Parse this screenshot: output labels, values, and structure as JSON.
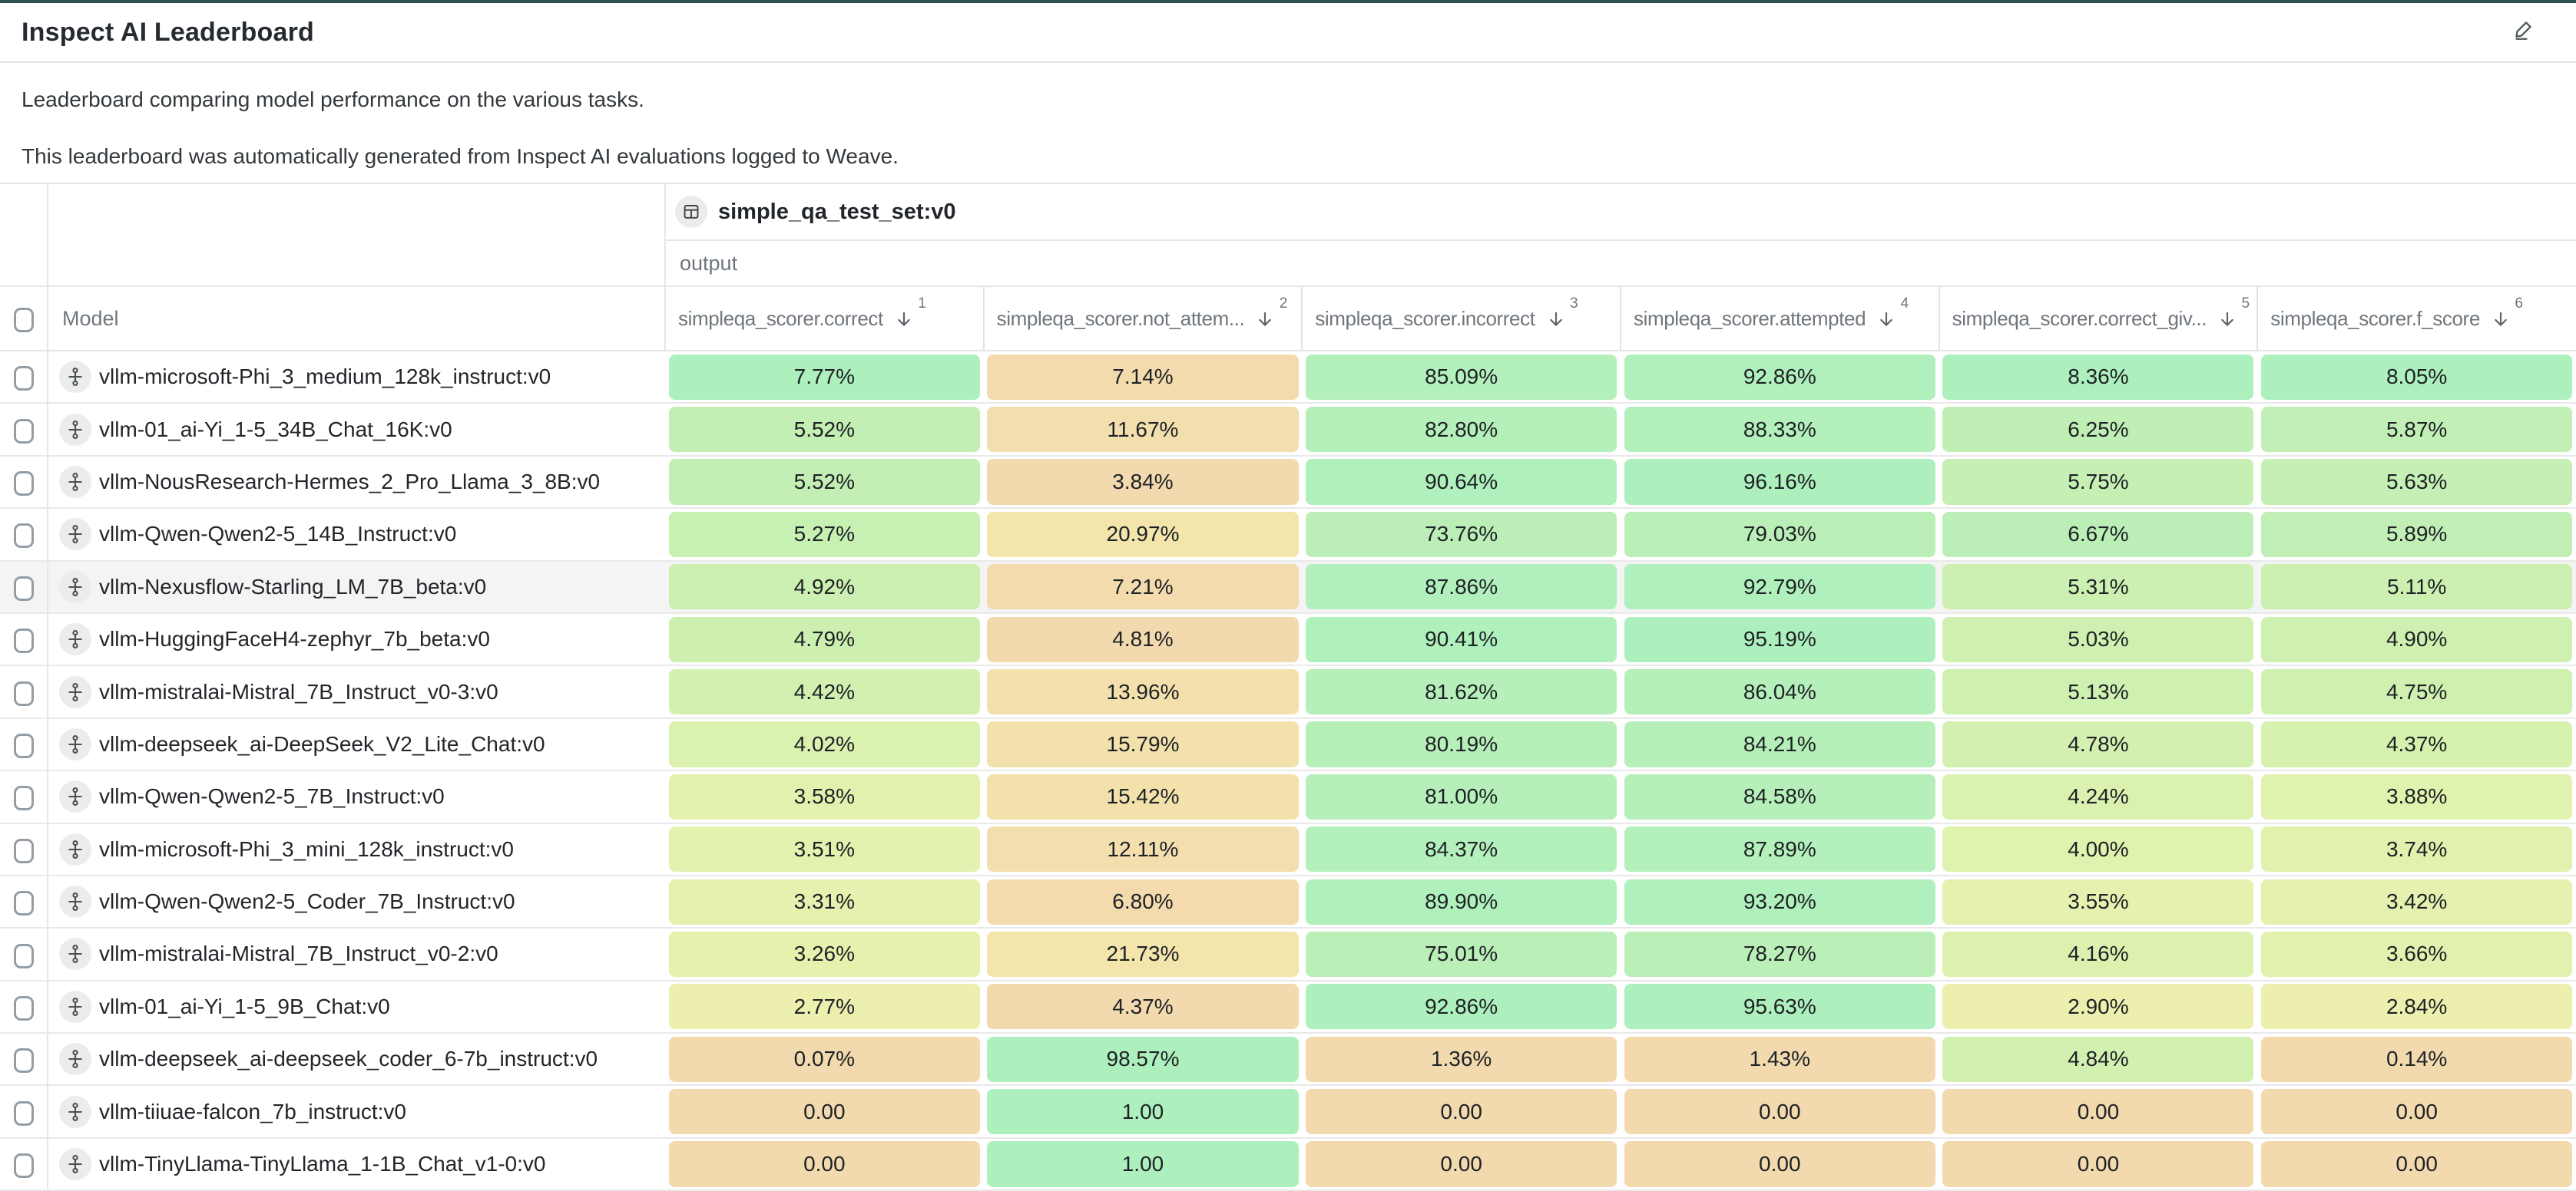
{
  "page": {
    "title": "Inspect AI Leaderboard",
    "description_line1": "Leaderboard comparing model performance on the various tasks.",
    "description_line2": "This leaderboard was automatically generated from Inspect AI evaluations logged to Weave."
  },
  "table": {
    "dataset_group": {
      "icon": "table-icon",
      "label": "simple_qa_test_set:v0"
    },
    "subgroup_label": "output",
    "model_column_header": "Model",
    "columns": [
      {
        "label": "simpleqa_scorer.correct",
        "sort_arrow": "down",
        "sort_order": "1"
      },
      {
        "label": "simpleqa_scorer.not_attem...",
        "sort_arrow": "down",
        "sort_order": "2"
      },
      {
        "label": "simpleqa_scorer.incorrect",
        "sort_arrow": "down",
        "sort_order": "3"
      },
      {
        "label": "simpleqa_scorer.attempted",
        "sort_arrow": "down",
        "sort_order": "4"
      },
      {
        "label": "simpleqa_scorer.correct_giv...",
        "sort_arrow": "down",
        "sort_order": "5"
      },
      {
        "label": "simpleqa_scorer.f_score",
        "sort_arrow": "down",
        "sort_order": "6"
      }
    ],
    "rows": [
      {
        "model": "vllm-microsoft-Phi_3_medium_128k_instruct:v0",
        "highlighted": false,
        "values": [
          "7.77%",
          "7.14%",
          "85.09%",
          "92.86%",
          "8.36%",
          "8.05%"
        ]
      },
      {
        "model": "vllm-01_ai-Yi_1-5_34B_Chat_16K:v0",
        "highlighted": false,
        "values": [
          "5.52%",
          "11.67%",
          "82.80%",
          "88.33%",
          "6.25%",
          "5.87%"
        ]
      },
      {
        "model": "vllm-NousResearch-Hermes_2_Pro_Llama_3_8B:v0",
        "highlighted": false,
        "values": [
          "5.52%",
          "3.84%",
          "90.64%",
          "96.16%",
          "5.75%",
          "5.63%"
        ]
      },
      {
        "model": "vllm-Qwen-Qwen2-5_14B_Instruct:v0",
        "highlighted": false,
        "values": [
          "5.27%",
          "20.97%",
          "73.76%",
          "79.03%",
          "6.67%",
          "5.89%"
        ]
      },
      {
        "model": "vllm-Nexusflow-Starling_LM_7B_beta:v0",
        "highlighted": true,
        "values": [
          "4.92%",
          "7.21%",
          "87.86%",
          "92.79%",
          "5.31%",
          "5.11%"
        ]
      },
      {
        "model": "vllm-HuggingFaceH4-zephyr_7b_beta:v0",
        "highlighted": false,
        "values": [
          "4.79%",
          "4.81%",
          "90.41%",
          "95.19%",
          "5.03%",
          "4.90%"
        ]
      },
      {
        "model": "vllm-mistralai-Mistral_7B_Instruct_v0-3:v0",
        "highlighted": false,
        "values": [
          "4.42%",
          "13.96%",
          "81.62%",
          "86.04%",
          "5.13%",
          "4.75%"
        ]
      },
      {
        "model": "vllm-deepseek_ai-DeepSeek_V2_Lite_Chat:v0",
        "highlighted": false,
        "values": [
          "4.02%",
          "15.79%",
          "80.19%",
          "84.21%",
          "4.78%",
          "4.37%"
        ]
      },
      {
        "model": "vllm-Qwen-Qwen2-5_7B_Instruct:v0",
        "highlighted": false,
        "values": [
          "3.58%",
          "15.42%",
          "81.00%",
          "84.58%",
          "4.24%",
          "3.88%"
        ]
      },
      {
        "model": "vllm-microsoft-Phi_3_mini_128k_instruct:v0",
        "highlighted": false,
        "values": [
          "3.51%",
          "12.11%",
          "84.37%",
          "87.89%",
          "4.00%",
          "3.74%"
        ]
      },
      {
        "model": "vllm-Qwen-Qwen2-5_Coder_7B_Instruct:v0",
        "highlighted": false,
        "values": [
          "3.31%",
          "6.80%",
          "89.90%",
          "93.20%",
          "3.55%",
          "3.42%"
        ]
      },
      {
        "model": "vllm-mistralai-Mistral_7B_Instruct_v0-2:v0",
        "highlighted": false,
        "values": [
          "3.26%",
          "21.73%",
          "75.01%",
          "78.27%",
          "4.16%",
          "3.66%"
        ]
      },
      {
        "model": "vllm-01_ai-Yi_1-5_9B_Chat:v0",
        "highlighted": false,
        "values": [
          "2.77%",
          "4.37%",
          "92.86%",
          "95.63%",
          "2.90%",
          "2.84%"
        ]
      },
      {
        "model": "vllm-deepseek_ai-deepseek_coder_6-7b_instruct:v0",
        "highlighted": false,
        "values": [
          "0.07%",
          "98.57%",
          "1.36%",
          "1.43%",
          "4.84%",
          "0.14%"
        ]
      },
      {
        "model": "vllm-tiiuae-falcon_7b_instruct:v0",
        "highlighted": false,
        "values": [
          "0.00",
          "1.00",
          "0.00",
          "0.00",
          "0.00",
          "0.00"
        ]
      },
      {
        "model": "vllm-TinyLlama-TinyLlama_1-1B_Chat_v1-0:v0",
        "highlighted": false,
        "values": [
          "0.00",
          "1.00",
          "0.00",
          "0.00",
          "0.00",
          "0.00"
        ]
      }
    ]
  },
  "colors": {
    "top_strip": "#2e5151",
    "divider": "#e4e4e4",
    "title_text": "#262b31",
    "body_text": "#33383c",
    "header_text": "#6f767c",
    "value_text": "#1e2125",
    "row_highlight": "#f4f4f4",
    "icon_circle_bg": "#ececec",
    "icon_stroke": "#4a5156",
    "checkbox_border": "#959da4",
    "heatmap_stops": [
      [
        0.0,
        "#f3d9ae"
      ],
      [
        0.15,
        "#f3e3ac"
      ],
      [
        0.3,
        "#f1edae"
      ],
      [
        0.45,
        "#e3f2ae"
      ],
      [
        0.6,
        "#cff0b0"
      ],
      [
        0.78,
        "#bdefb7"
      ],
      [
        1.0,
        "#adf0bd"
      ]
    ]
  }
}
